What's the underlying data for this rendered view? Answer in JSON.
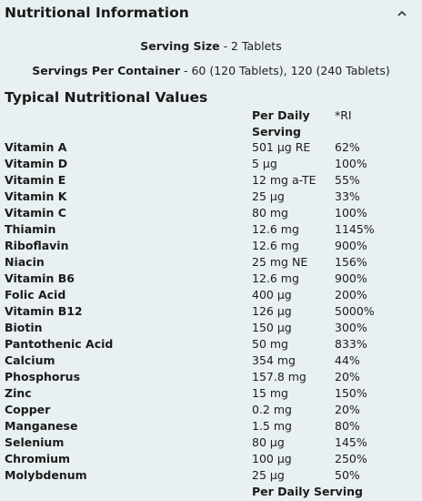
{
  "header": {
    "title": "Nutritional Information",
    "icon": "chevron-up-icon"
  },
  "serving": {
    "size_label": "Serving Size",
    "size_value": " - 2 Tablets",
    "per_container_label": "Servings Per Container",
    "per_container_value": " - 60 (120 Tablets), 120 (240 Tablets)"
  },
  "section": {
    "title": "Typical Nutritional Values"
  },
  "columns": {
    "per_daily": "Per Daily Serving",
    "ri": "*RI"
  },
  "rows": [
    {
      "name": "Vitamin A",
      "value": "501 µg RE",
      "ri": "62%"
    },
    {
      "name": "Vitamin D",
      "value": "5 µg",
      "ri": "100%"
    },
    {
      "name": "Vitamin E",
      "value": "12 mg a-TE",
      "ri": "55%"
    },
    {
      "name": "Vitamin K",
      "value": "25 µg",
      "ri": "33%"
    },
    {
      "name": "Vitamin C",
      "value": "80 mg",
      "ri": "100%"
    },
    {
      "name": "Thiamin",
      "value": "12.6 mg",
      "ri": "1145%"
    },
    {
      "name": "Riboflavin",
      "value": "12.6 mg",
      "ri": "900%"
    },
    {
      "name": "Niacin",
      "value": "25 mg NE",
      "ri": "156%"
    },
    {
      "name": "Vitamin B6",
      "value": "12.6 mg",
      "ri": "900%"
    },
    {
      "name": "Folic Acid",
      "value": "400 µg",
      "ri": "200%"
    },
    {
      "name": "Vitamin B12",
      "value": "126 µg",
      "ri": "5000%"
    },
    {
      "name": "Biotin",
      "value": "150 µg",
      "ri": "300%"
    },
    {
      "name": "Pantothenic Acid",
      "value": "50 mg",
      "ri": "833%"
    },
    {
      "name": "Calcium",
      "value": "354 mg",
      "ri": "44%"
    },
    {
      "name": "Phosphorus",
      "value": "157.8 mg",
      "ri": "20%"
    },
    {
      "name": "Zinc",
      "value": "15 mg",
      "ri": "150%"
    },
    {
      "name": "Copper",
      "value": "0.2 mg",
      "ri": "20%"
    },
    {
      "name": "Manganese",
      "value": "1.5 mg",
      "ri": "80%"
    },
    {
      "name": "Selenium",
      "value": "80 µg",
      "ri": "145%"
    },
    {
      "name": "Chromium",
      "value": "100 µg",
      "ri": "250%"
    },
    {
      "name": "Molybdenum",
      "value": "25 µg",
      "ri": "50%"
    }
  ],
  "footer": {
    "per_daily": "Per Daily Serving"
  }
}
